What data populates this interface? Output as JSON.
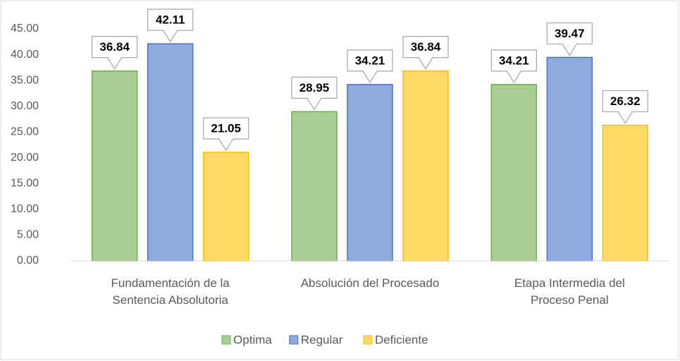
{
  "chart_data": {
    "type": "bar",
    "categories": [
      "Fundamentación de la\nSentencia Absolutoria",
      "Absolución del Procesado",
      "Etapa Intermedia del\nProceso Penal"
    ],
    "series": [
      {
        "name": "Optima",
        "color": "#70ad47",
        "values": [
          36.84,
          28.95,
          34.21
        ]
      },
      {
        "name": "Regular",
        "color": "#4472c4",
        "values": [
          42.11,
          34.21,
          39.47
        ]
      },
      {
        "name": "Deficiente",
        "color": "#ffc000",
        "values": [
          21.05,
          36.84,
          26.32
        ]
      }
    ],
    "ylim": [
      0,
      45
    ],
    "yticks": [
      {
        "value": 0,
        "label": "0.00"
      },
      {
        "value": 5,
        "label": "5.00"
      },
      {
        "value": 10,
        "label": "10.00"
      },
      {
        "value": 15,
        "label": "15.00"
      },
      {
        "value": 20,
        "label": "20.00"
      },
      {
        "value": 25,
        "label": "25.00"
      },
      {
        "value": 30,
        "label": "30.00"
      },
      {
        "value": 35,
        "label": "35.00"
      },
      {
        "value": 40,
        "label": "40.00"
      },
      {
        "value": 45,
        "label": "45.00"
      }
    ],
    "grid": false,
    "legend": "bottom"
  }
}
